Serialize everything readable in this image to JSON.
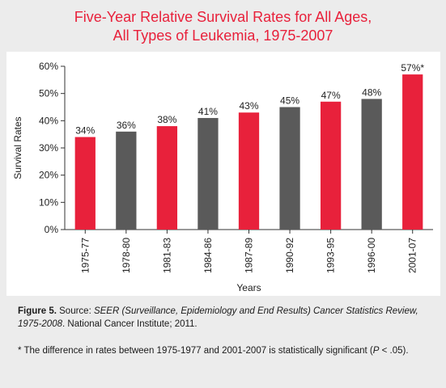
{
  "chart_data": {
    "type": "bar",
    "title": [
      "Five-Year Relative Survival Rates for All Ages,",
      "All Types of Leukemia, 1975-2007"
    ],
    "xlabel": "Years",
    "ylabel": "Survival Rates",
    "categories": [
      "1975-77",
      "1978-80",
      "1981-83",
      "1984-86",
      "1987-89",
      "1990-92",
      "1993-95",
      "1996-00",
      "2001-07"
    ],
    "values": [
      34,
      36,
      38,
      41,
      43,
      45,
      47,
      48,
      57
    ],
    "data_labels": [
      "34%",
      "36%",
      "38%",
      "41%",
      "43%",
      "45%",
      "47%",
      "48%",
      "57%*"
    ],
    "bar_colors": [
      "#e8213b",
      "#5a5a5a",
      "#e8213b",
      "#5a5a5a",
      "#e8213b",
      "#5a5a5a",
      "#e8213b",
      "#5a5a5a",
      "#e8213b"
    ],
    "ylim": [
      0,
      60
    ],
    "yticks": [
      0,
      10,
      20,
      30,
      40,
      50,
      60
    ],
    "ytick_labels": [
      "0%",
      "10%",
      "20%",
      "30%",
      "40%",
      "50%",
      "60%"
    ],
    "grid": false,
    "legend": "none"
  },
  "caption": {
    "label": "Figure 5.",
    "source_prefix": " Source: ",
    "source_title": "SEER (Surveillance, Epidemiology and End Results) Cancer Statistics Review, 1975-2008",
    "source_suffix": ". National Cancer Institute; 2011."
  },
  "footnote": {
    "text_before": "* The difference in rates between 1975-1977 and 2001-2007 is statistically significant (",
    "p_symbol": "P",
    "text_after": " < .05)."
  },
  "colors": {
    "accent_red": "#e8213b",
    "bar_gray": "#5a5a5a",
    "background": "#ececec"
  }
}
